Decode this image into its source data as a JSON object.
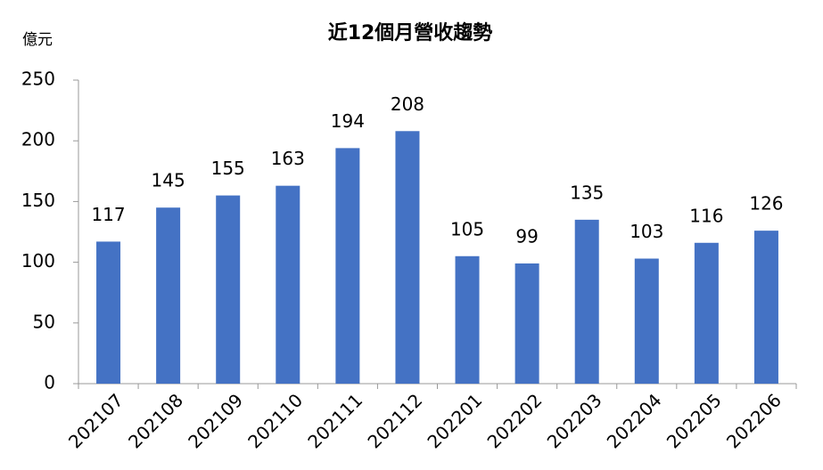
{
  "chart_data": {
    "type": "bar",
    "title": "近12個月營收趨勢",
    "y_label": "億元",
    "categories": [
      "202107",
      "202108",
      "202109",
      "202110",
      "202111",
      "202112",
      "202201",
      "202202",
      "202203",
      "202204",
      "202205",
      "202206"
    ],
    "values": [
      117,
      145,
      155,
      163,
      194,
      208,
      105,
      99,
      135,
      103,
      116,
      126
    ],
    "color": "#4472c4",
    "ylim": [
      0,
      250
    ],
    "yticks": [
      0,
      50,
      100,
      150,
      200,
      250
    ],
    "grid": false
  }
}
